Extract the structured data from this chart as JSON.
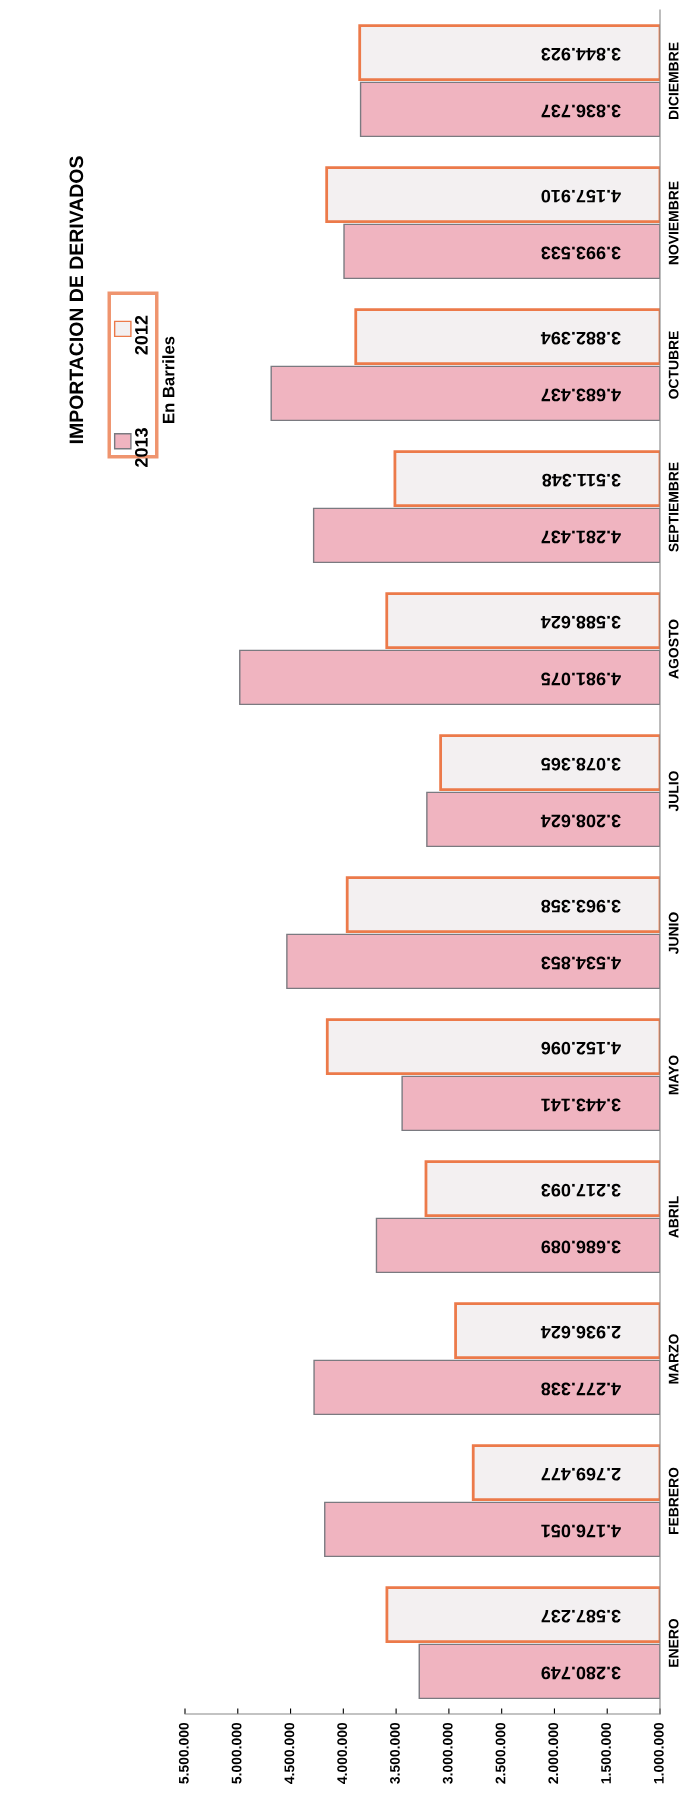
{
  "chart_data": {
    "type": "bar",
    "orientation": "horizontal",
    "title": "IMPORTACION DE DERIVADOS",
    "subtitle": "En Barriles",
    "categories": [
      "DICIEMBRE",
      "NOVIEMBRE",
      "OCTUBRE",
      "SEPTIEMBRE",
      "AGOSTO",
      "JULIO",
      "JUNIO",
      "MAYO",
      "ABRIL",
      "MARZO",
      "FEBRERO",
      "ENERO"
    ],
    "series": [
      {
        "name": "2013",
        "color": "#f0b4c0",
        "values": [
          3836737,
          3993533,
          4683437,
          4281437,
          4981075,
          3208624,
          4534853,
          3443141,
          3686089,
          4277338,
          4176051,
          3280749
        ],
        "value_labels": [
          "3.836.737",
          "3.993.533",
          "4.683.437",
          "4.281.437",
          "4.981.075",
          "3.208.624",
          "4.534.853",
          "3.443.141",
          "3.686.089",
          "4.277.338",
          "4.176.051",
          "3.280.749"
        ]
      },
      {
        "name": "2012",
        "color": "#f3f0f1",
        "values": [
          3844923,
          4157910,
          3882394,
          3511348,
          3588624,
          3078365,
          3963358,
          4152096,
          3217093,
          2936624,
          2769477,
          3587237
        ],
        "value_labels": [
          "3.844.923",
          "4.157.910",
          "3.882.394",
          "3.511.348",
          "3.588.624",
          "3.078.365",
          "3.963.358",
          "4.152.096",
          "3.217.093",
          "2.936.624",
          "2.769.477",
          "3.587.237"
        ]
      }
    ],
    "xlim": [
      5500000,
      1000000
    ],
    "xticks": [
      {
        "value": 5500000,
        "label": "5.500.000"
      },
      {
        "value": 5000000,
        "label": "5.000.000"
      },
      {
        "value": 4500000,
        "label": "4.500.000"
      },
      {
        "value": 4000000,
        "label": "4.000.000"
      },
      {
        "value": 3500000,
        "label": "3.500.000"
      },
      {
        "value": 3000000,
        "label": "3.000.000"
      },
      {
        "value": 2500000,
        "label": "2.500.000"
      },
      {
        "value": 2000000,
        "label": "2.000.000"
      },
      {
        "value": 1500000,
        "label": "1.500.000"
      },
      {
        "value": 1000000,
        "label": "1.000.000"
      }
    ],
    "grid": false,
    "legend": "left"
  }
}
